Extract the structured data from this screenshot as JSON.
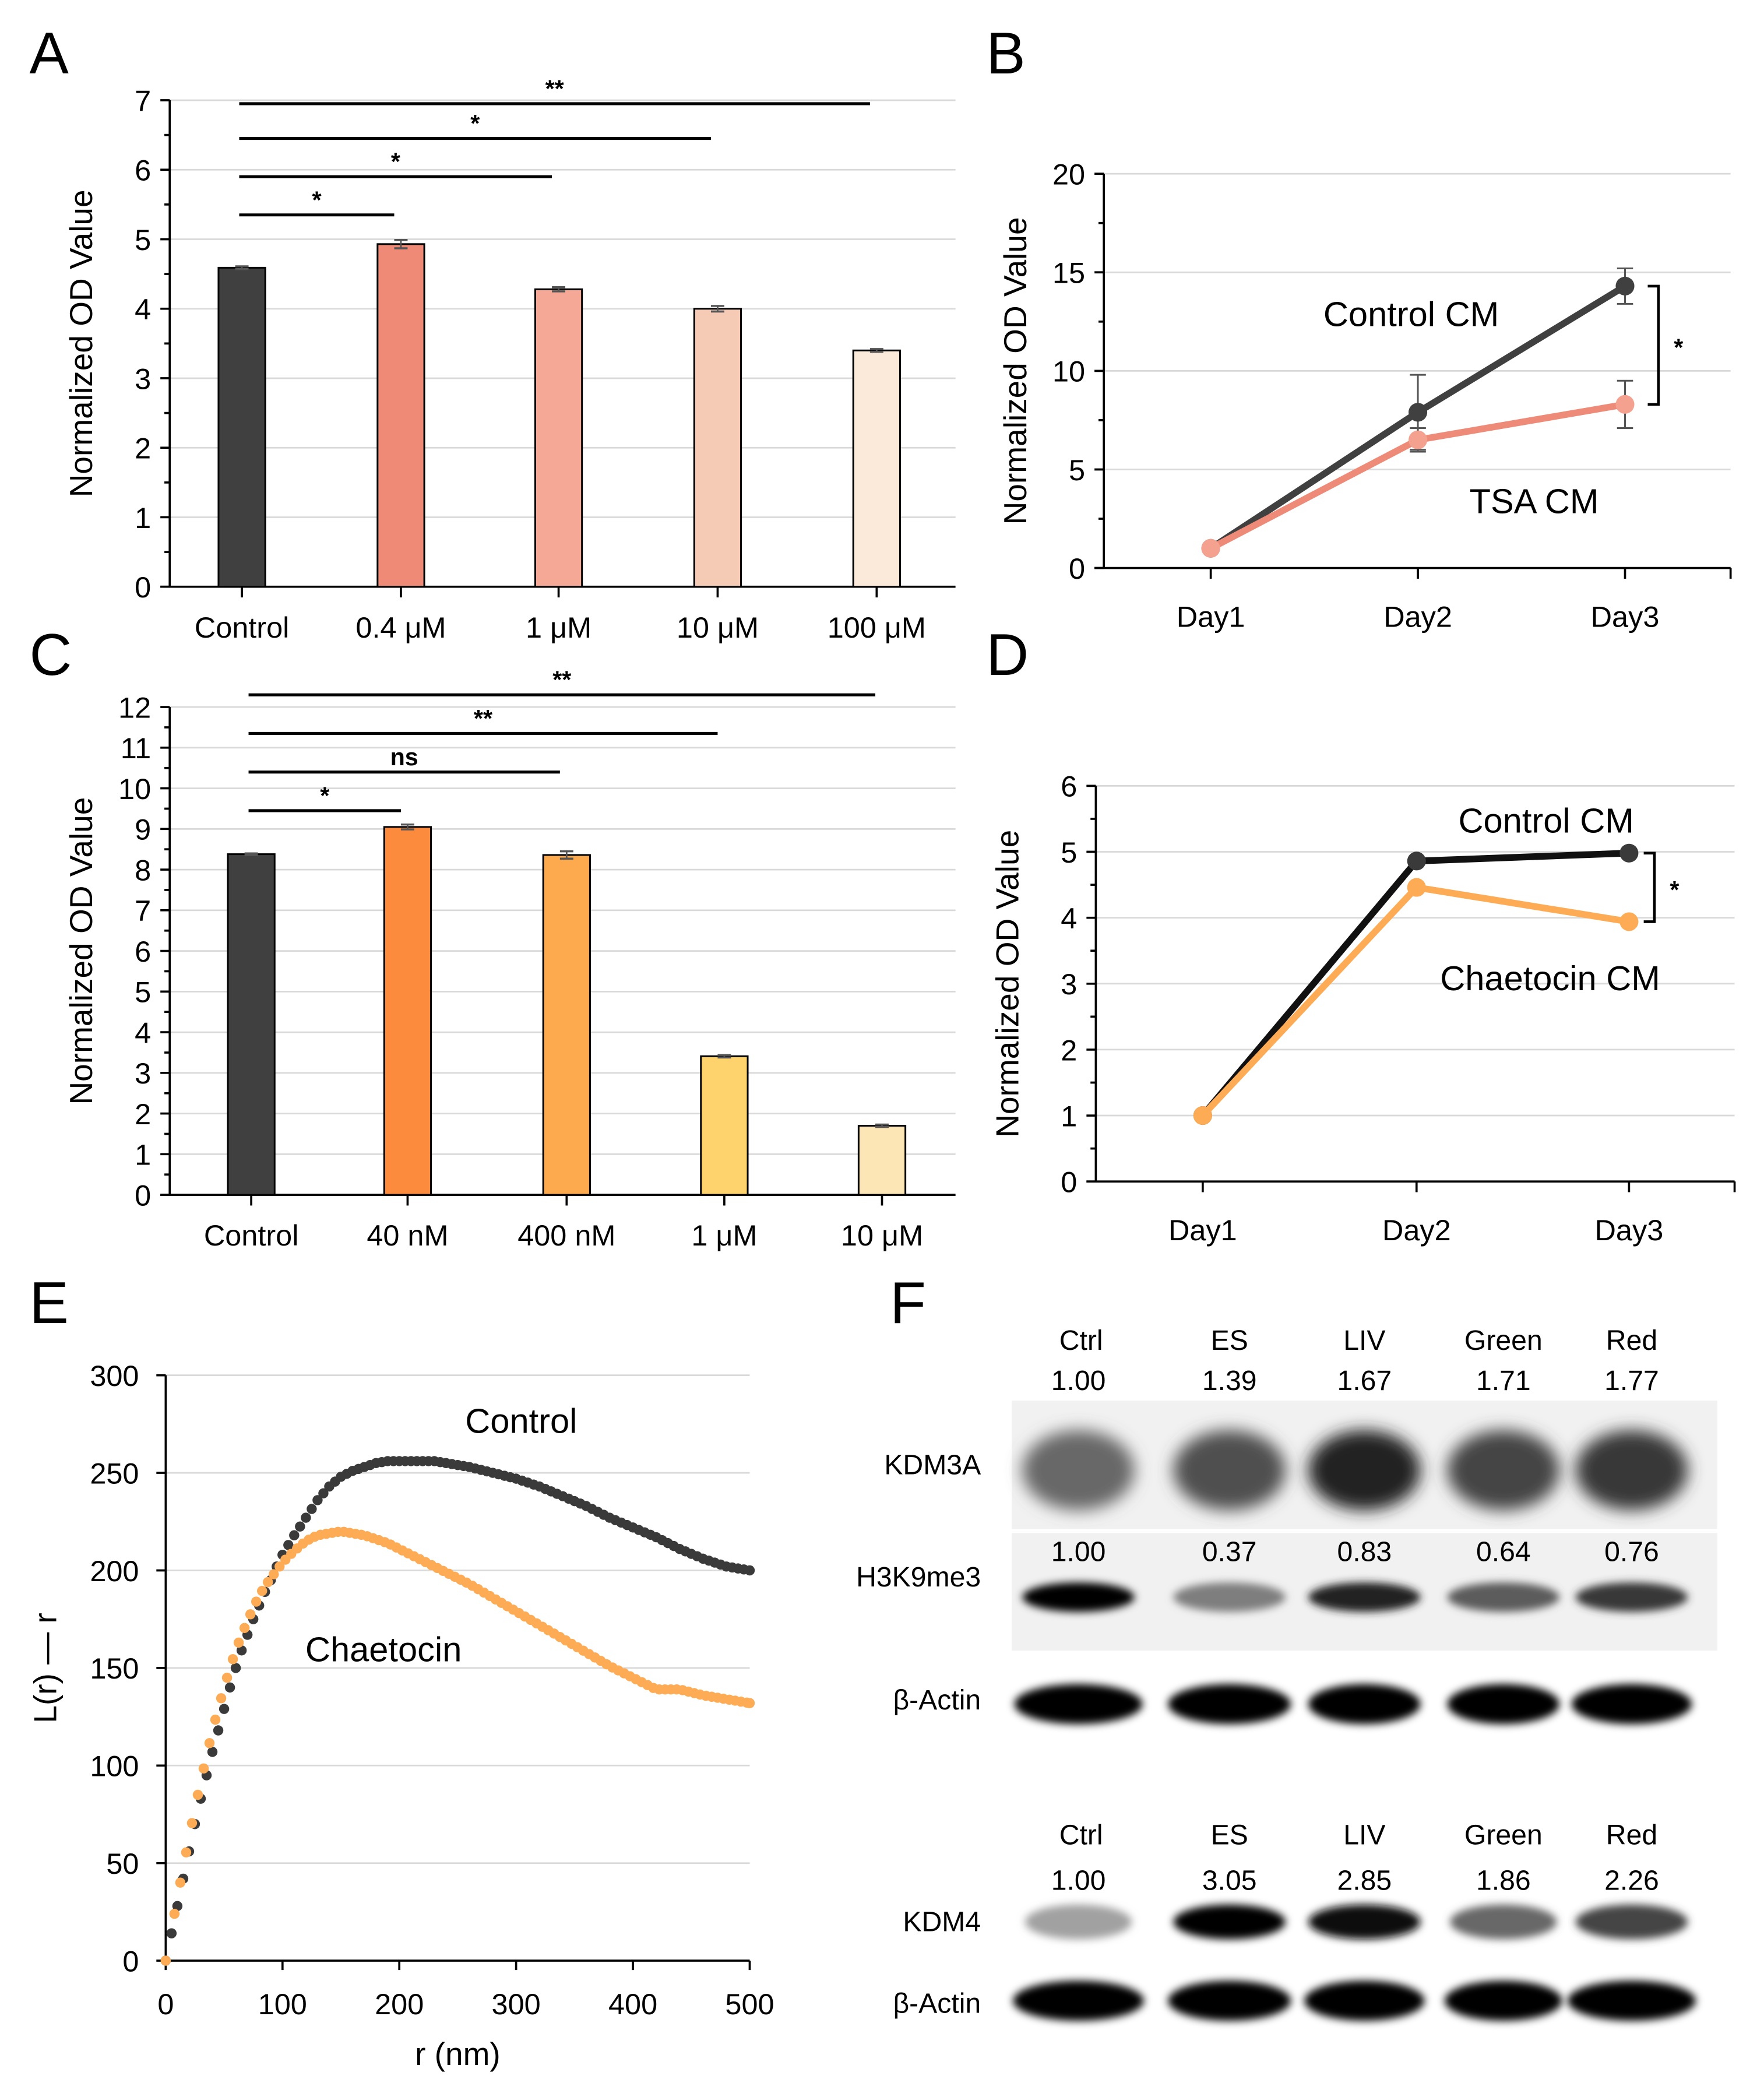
{
  "panels": {
    "A": {
      "letter": "A"
    },
    "B": {
      "letter": "B"
    },
    "C": {
      "letter": "C"
    },
    "D": {
      "letter": "D"
    },
    "E": {
      "letter": "E"
    },
    "F": {
      "letter": "F"
    }
  },
  "colors": {
    "control_dark": "#404040",
    "tsa_line": "#ee8a78",
    "tsa_marker": "#f4a28f",
    "chaetocin_line": "#fdab55",
    "chaetocin_marker": "#fdab55",
    "control_line_black": "#111111",
    "control_scatter": "#3a3a3a"
  },
  "chart_data": [
    {
      "id": "A",
      "type": "bar",
      "title": "",
      "xlabel": "",
      "ylabel": "Normalized OD Value",
      "ylim": [
        0,
        7
      ],
      "yticks": [
        0,
        1,
        2,
        3,
        4,
        5,
        6,
        7
      ],
      "grid": true,
      "categories": [
        "Control",
        "0.4 μM",
        "1 μM",
        "10 μM",
        "100 μM"
      ],
      "values": [
        4.59,
        4.93,
        4.28,
        4.0,
        3.4
      ],
      "errors": [
        0.02,
        0.06,
        0.03,
        0.04,
        0.02
      ],
      "bar_colors": [
        "#404040",
        "#ef8a76",
        "#f5a895",
        "#f6cbb6",
        "#fbe9d9"
      ],
      "significance": [
        {
          "from": "Control",
          "to": "0.4 μM",
          "label": "*",
          "level": 5.35
        },
        {
          "from": "Control",
          "to": "1 μM",
          "label": "*",
          "level": 5.9
        },
        {
          "from": "Control",
          "to": "10 μM",
          "label": "*",
          "level": 6.45
        },
        {
          "from": "Control",
          "to": "100 μM",
          "label": "**",
          "level": 6.95
        }
      ]
    },
    {
      "id": "B",
      "type": "line",
      "ylabel": "Normalized OD Value",
      "ylim": [
        0,
        20
      ],
      "yticks": [
        0,
        5,
        10,
        15,
        20
      ],
      "grid": true,
      "categories": [
        "Day1",
        "Day2",
        "Day3"
      ],
      "series": [
        {
          "name": "Control CM",
          "values": [
            1.0,
            7.9,
            14.3
          ],
          "errors": [
            0,
            1.9,
            0.9
          ],
          "color": "#404040"
        },
        {
          "name": "TSA CM",
          "values": [
            1.0,
            6.5,
            8.3
          ],
          "errors": [
            0,
            0.6,
            1.2
          ],
          "color": "#ee8a78"
        }
      ],
      "annotations": [
        {
          "text": "Control CM"
        },
        {
          "text": "TSA CM"
        },
        {
          "text": "*",
          "type": "bracket",
          "between": [
            "Control CM",
            "TSA CM"
          ],
          "at": "Day3"
        }
      ]
    },
    {
      "id": "C",
      "type": "bar",
      "ylabel": "Normalized OD Value",
      "ylim": [
        0,
        12
      ],
      "yticks": [
        0,
        1,
        2,
        3,
        4,
        5,
        6,
        7,
        8,
        9,
        10,
        11,
        12
      ],
      "grid": true,
      "categories": [
        "Control",
        "40 nM",
        "400 nM",
        "1 μM",
        "10 μM"
      ],
      "values": [
        8.38,
        9.05,
        8.36,
        3.41,
        1.7
      ],
      "errors": [
        0.02,
        0.06,
        0.09,
        0.03,
        0.03
      ],
      "bar_colors": [
        "#404040",
        "#fd8b3e",
        "#fdaa4f",
        "#fed26c",
        "#fde6b5"
      ],
      "significance": [
        {
          "from": "Control",
          "to": "40 nM",
          "label": "*",
          "level": 9.45
        },
        {
          "from": "Control",
          "to": "400 nM",
          "label": "ns",
          "level": 10.4
        },
        {
          "from": "Control",
          "to": "1 μM",
          "label": "**",
          "level": 11.35
        },
        {
          "from": "Control",
          "to": "10 μM",
          "label": "**",
          "level": 12.3
        }
      ]
    },
    {
      "id": "D",
      "type": "line",
      "ylabel": "Normalized OD Value",
      "ylim": [
        0,
        6
      ],
      "yticks": [
        0,
        1,
        2,
        3,
        4,
        5,
        6
      ],
      "grid": true,
      "categories": [
        "Day1",
        "Day2",
        "Day3"
      ],
      "series": [
        {
          "name": "Control CM",
          "values": [
            1.0,
            4.86,
            4.98
          ],
          "color": "#111111"
        },
        {
          "name": "Chaetocin CM",
          "values": [
            1.0,
            4.46,
            3.94
          ],
          "color": "#fdab55"
        }
      ],
      "annotations": [
        {
          "text": "Control CM"
        },
        {
          "text": "Chaetocin CM"
        },
        {
          "text": "*",
          "type": "bracket",
          "between": [
            "Control CM",
            "Chaetocin CM"
          ],
          "at": "Day3"
        }
      ]
    },
    {
      "id": "E",
      "type": "scatter",
      "xlabel": "r (nm)",
      "ylabel": "L(r) — r",
      "xlim": [
        0,
        500
      ],
      "ylim": [
        0,
        300
      ],
      "xticks": [
        0,
        100,
        200,
        300,
        400,
        500
      ],
      "yticks": [
        0,
        50,
        100,
        150,
        200,
        250,
        300
      ],
      "grid": true,
      "series": [
        {
          "name": "Control",
          "color": "#3a3a3a",
          "x": [
            0,
            5,
            10,
            15,
            20,
            25,
            30,
            35,
            40,
            45,
            50,
            55,
            60,
            65,
            70,
            75,
            80,
            85,
            90,
            95,
            100,
            110,
            120,
            130,
            140,
            150,
            160,
            170,
            180,
            190,
            200,
            210,
            220,
            230,
            240,
            250,
            260,
            280,
            300,
            320,
            340,
            360,
            380,
            400,
            420,
            440,
            460,
            480,
            500
          ],
          "y": [
            0,
            14,
            28,
            42,
            56,
            70,
            83,
            95,
            107,
            118,
            129,
            140,
            150,
            159,
            167,
            175,
            182,
            189,
            195,
            202,
            208,
            218,
            227,
            236,
            243,
            248,
            251,
            253,
            255,
            256,
            256,
            256,
            256,
            256,
            255,
            254,
            253,
            250,
            247,
            243,
            238,
            233,
            227,
            222,
            217,
            211,
            206,
            202,
            200
          ]
        },
        {
          "name": "Chaetocin",
          "color": "#fdab55",
          "x": [
            0,
            5,
            10,
            15,
            20,
            25,
            30,
            35,
            40,
            45,
            50,
            55,
            60,
            65,
            70,
            75,
            80,
            85,
            90,
            95,
            100,
            110,
            120,
            130,
            140,
            150,
            160,
            170,
            180,
            190,
            200,
            220,
            240,
            260,
            280,
            300,
            320,
            340,
            360,
            380,
            400,
            420,
            440,
            460,
            480,
            500
          ],
          "y": [
            0,
            16,
            32,
            48,
            63,
            78,
            92,
            105,
            118,
            129,
            140,
            150,
            159,
            167,
            174,
            181,
            187,
            192,
            196,
            200,
            204,
            210,
            215,
            218,
            219,
            220,
            219,
            218,
            216,
            214,
            211,
            205,
            199,
            193,
            186,
            179,
            172,
            165,
            158,
            151,
            145,
            139,
            139,
            136,
            134,
            132
          ]
        }
      ],
      "annotations": [
        {
          "text": "Control"
        },
        {
          "text": "Chaetocin"
        }
      ]
    },
    {
      "id": "F",
      "type": "table",
      "blots": [
        {
          "lanes": [
            "Ctrl",
            "ES",
            "LIV",
            "Green",
            "Red"
          ],
          "rows": [
            {
              "protein": "KDM3A",
              "quant": [
                "1.00",
                "1.39",
                "1.67",
                "1.71",
                "1.77"
              ],
              "intensity": [
                0.55,
                0.65,
                0.85,
                0.7,
                0.75
              ]
            },
            {
              "protein": "H3K9me3",
              "quant": [
                "1.00",
                "0.37",
                "0.83",
                "0.64",
                "0.76"
              ],
              "intensity": [
                1.0,
                0.45,
                0.85,
                0.6,
                0.75
              ]
            },
            {
              "protein": "β-Actin",
              "quant": [],
              "intensity": [
                1,
                1,
                1,
                1,
                1
              ]
            }
          ]
        },
        {
          "lanes": [
            "Ctrl",
            "ES",
            "LIV",
            "Green",
            "Red"
          ],
          "rows": [
            {
              "protein": "KDM4",
              "quant": [
                "1.00",
                "3.05",
                "2.85",
                "1.86",
                "2.26"
              ],
              "intensity": [
                0.3,
                1.0,
                0.95,
                0.55,
                0.7
              ]
            },
            {
              "protein": "β-Actin",
              "quant": [],
              "intensity": [
                1,
                1,
                1,
                1,
                1
              ]
            }
          ]
        }
      ]
    }
  ]
}
